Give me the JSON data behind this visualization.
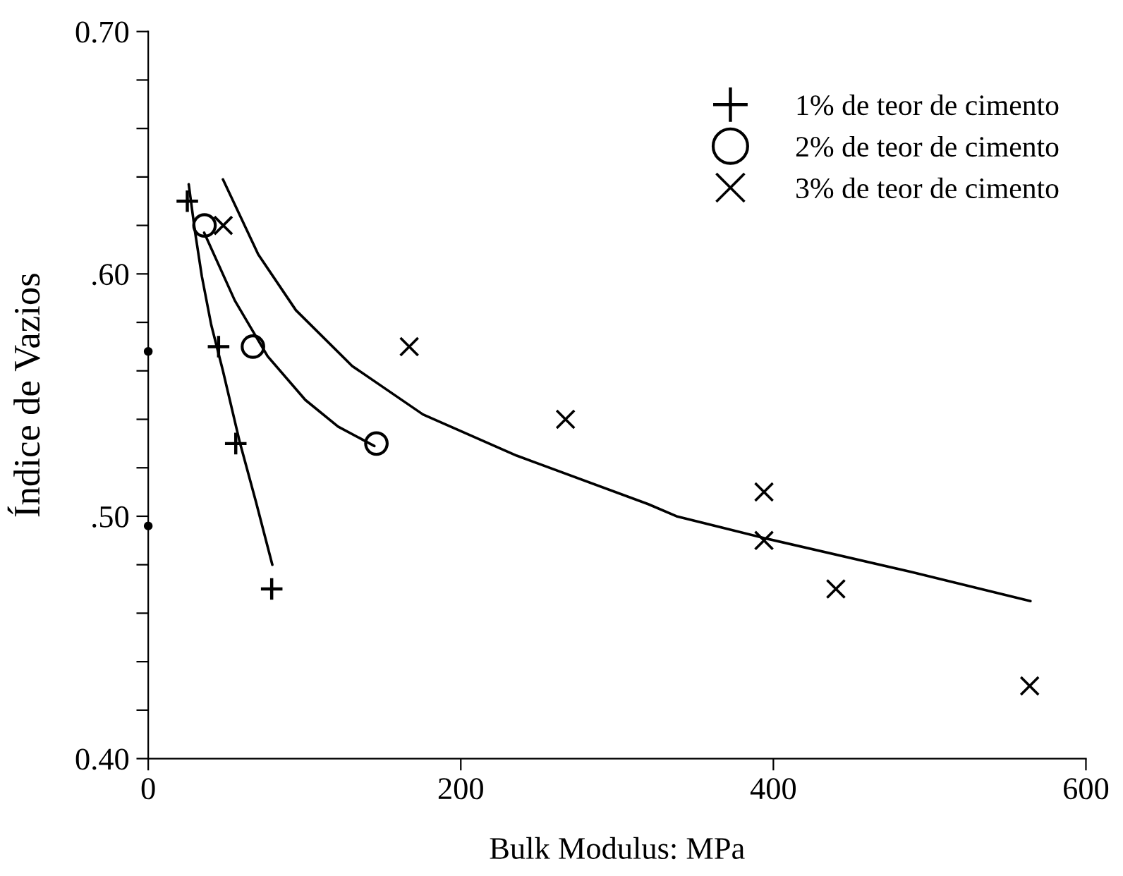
{
  "chart_data": {
    "type": "scatter",
    "xlabel": "Bulk Modulus: MPa",
    "ylabel": "Índice de Vazios",
    "xlim": [
      0,
      600
    ],
    "xticks": [
      0,
      200,
      400,
      600
    ],
    "ylim": [
      0.4,
      0.7
    ],
    "yticks": [
      {
        "value": 0.4,
        "label": "0.40"
      },
      {
        "value": 0.42,
        "label": null
      },
      {
        "value": 0.44,
        "label": null
      },
      {
        "value": 0.46,
        "label": null
      },
      {
        "value": 0.48,
        "label": null
      },
      {
        "value": 0.5,
        "label": ".50"
      },
      {
        "value": 0.52,
        "label": null
      },
      {
        "value": 0.54,
        "label": null
      },
      {
        "value": 0.56,
        "label": null
      },
      {
        "value": 0.58,
        "label": null
      },
      {
        "value": 0.6,
        "label": ".60"
      },
      {
        "value": 0.62,
        "label": null
      },
      {
        "value": 0.64,
        "label": null
      },
      {
        "value": 0.66,
        "label": null
      },
      {
        "value": 0.68,
        "label": null
      },
      {
        "value": 0.7,
        "label": "0.70"
      }
    ],
    "grid": false,
    "legend": "top right",
    "series": [
      {
        "name": "1% de teor de cimento",
        "color": "#000000",
        "marker": "plus",
        "x": [
          25,
          45,
          56,
          79
        ],
        "values": [
          0.63,
          0.57,
          0.53,
          0.47
        ]
      },
      {
        "name": "2% de teor de cimento",
        "color": "#000000",
        "marker": "circle",
        "x": [
          36,
          67,
          146
        ],
        "values": [
          0.62,
          0.57,
          0.53
        ]
      },
      {
        "name": "3% de teor de cimento",
        "color": "#000000",
        "marker": "cross",
        "x": [
          48,
          167,
          267,
          394,
          394,
          440,
          564
        ],
        "values": [
          0.62,
          0.57,
          0.54,
          0.51,
          0.49,
          0.47,
          0.43
        ]
      },
      {
        "type": "line",
        "color": "#000000",
        "marker": "none",
        "line_style": "solid",
        "x": [
          25.9,
          29.8,
          34.3,
          40.3,
          47.8,
          58.4,
          68.9,
          79.4
        ],
        "values": [
          0.637,
          0.618,
          0.599,
          0.579,
          0.56,
          0.531,
          0.506,
          0.48
        ]
      },
      {
        "type": "line",
        "color": "#000000",
        "marker": "none",
        "line_style": "solid",
        "x": [
          35.8,
          55.4,
          76.4,
          100.5,
          121.5,
          144.7
        ],
        "values": [
          0.617,
          0.589,
          0.566,
          0.548,
          0.537,
          0.529
        ]
      },
      {
        "type": "line",
        "color": "#000000",
        "marker": "none",
        "line_style": "solid",
        "x": [
          47.8,
          70.4,
          94.5,
          130.5,
          175.8,
          235.8,
          319.9,
          338.0,
          394.2,
          488.4,
          564.5
        ],
        "values": [
          0.639,
          0.608,
          0.585,
          0.562,
          0.542,
          0.525,
          0.505,
          0.5,
          0.491,
          0.477,
          0.465
        ]
      },
      {
        "color": "#000000",
        "marker": "dot",
        "x": [
          0,
          0
        ],
        "values": [
          0.568,
          0.496
        ]
      }
    ]
  }
}
